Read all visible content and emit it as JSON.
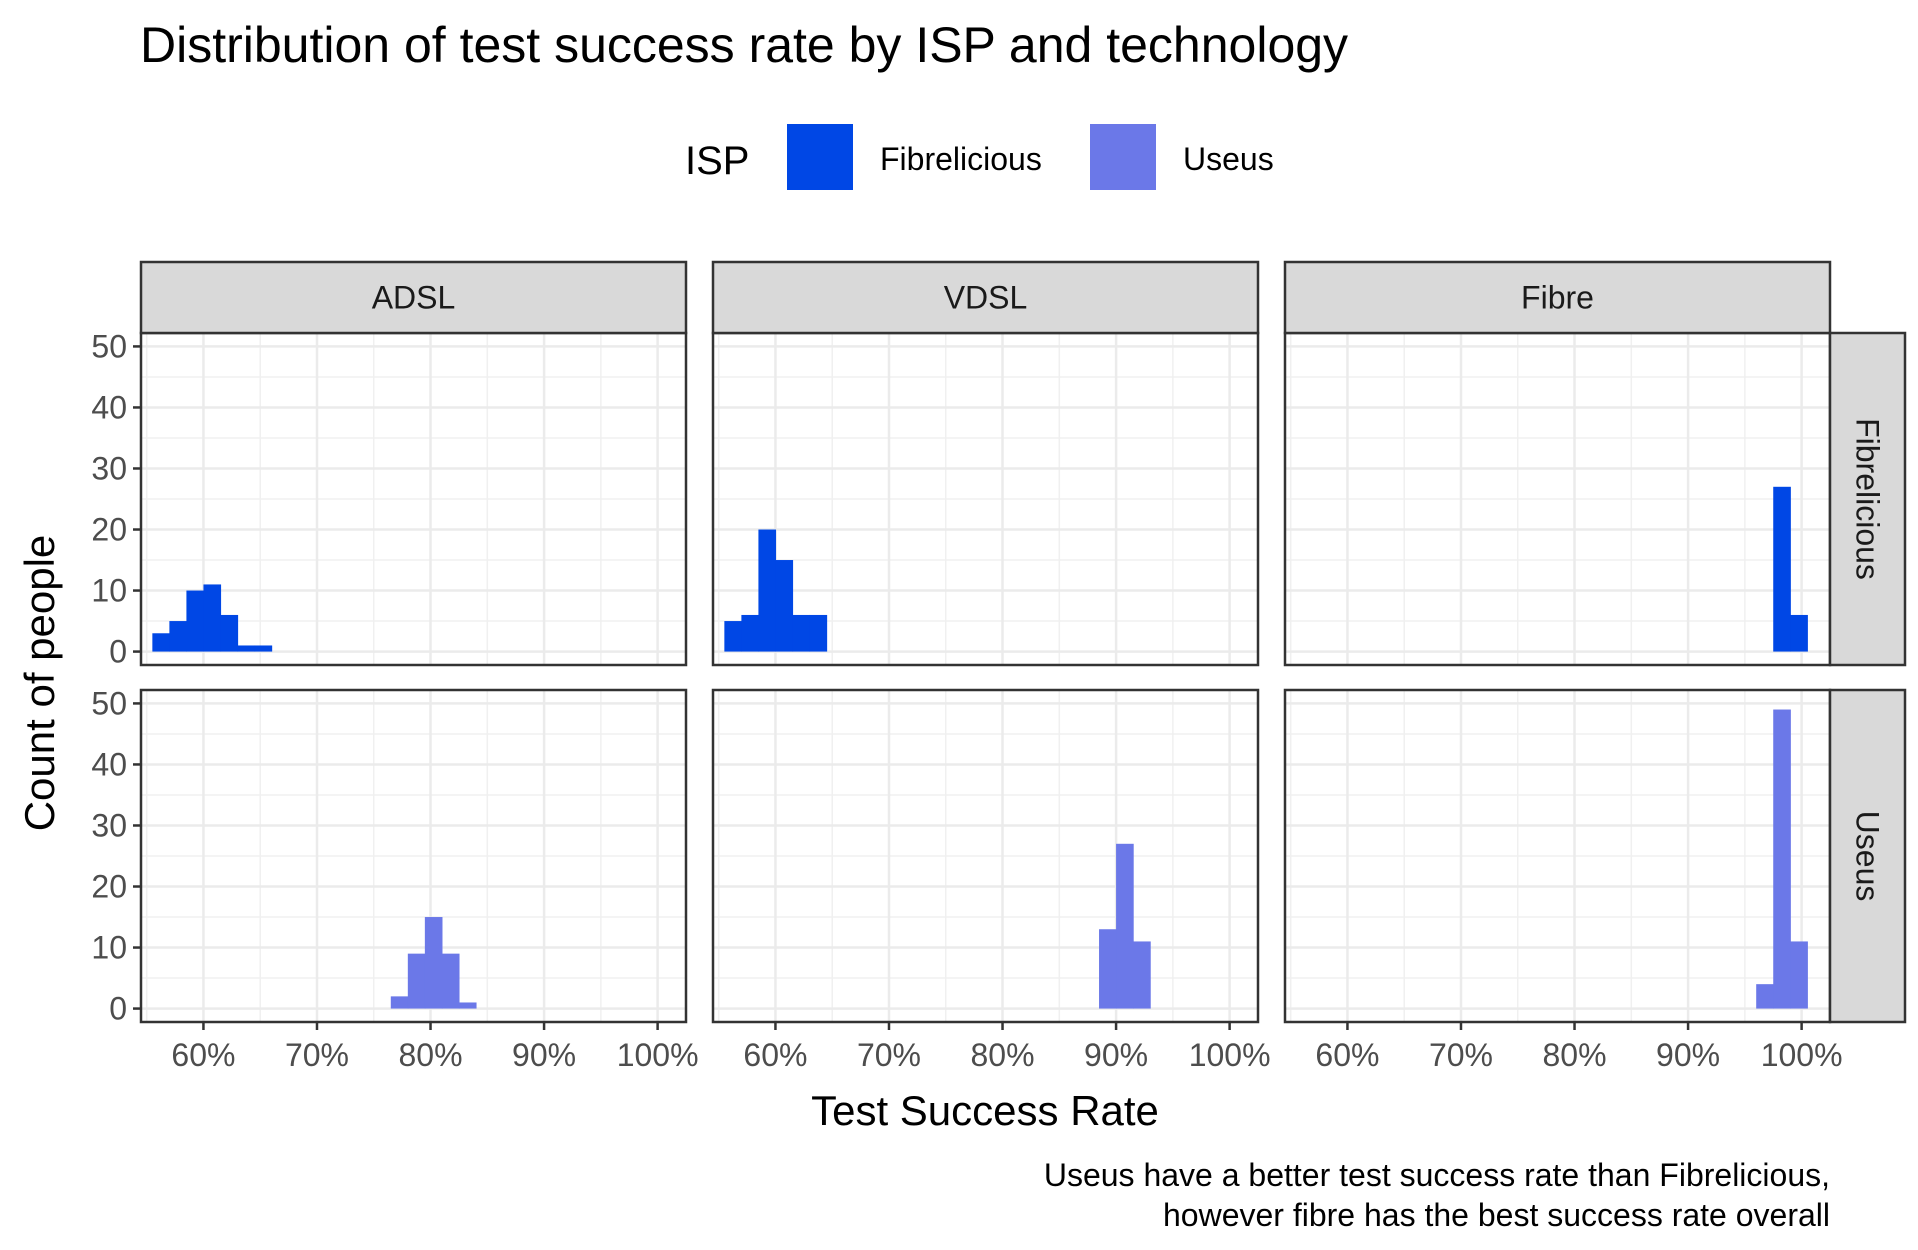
{
  "chart_data": {
    "type": "bar",
    "title": "Distribution of test success rate by ISP and technology",
    "xlabel": "Test Success Rate",
    "ylabel": "Count of people",
    "caption_lines": [
      "Useus have a better test success rate than Fibrelicious,",
      "however fibre has the best success rate overall"
    ],
    "legend": {
      "title": "ISP",
      "position": "top",
      "entries": [
        {
          "name": "Fibrelicious",
          "color": "#0047E5"
        },
        {
          "name": "Useus",
          "color": "#6B78E8"
        }
      ]
    },
    "columns": [
      "ADSL",
      "VDSL",
      "Fibre"
    ],
    "rows": [
      "Fibrelicious",
      "Useus"
    ],
    "xlim": [
      0.545,
      1.025
    ],
    "ylim": [
      -2.2,
      52.2
    ],
    "x_ticks": [
      0.6,
      0.7,
      0.8,
      0.9,
      1.0
    ],
    "x_tick_labels": [
      "60%",
      "70%",
      "80%",
      "90%",
      "100%"
    ],
    "y_ticks": [
      0,
      10,
      20,
      30,
      40,
      50
    ],
    "y_tick_labels": [
      "0",
      "10",
      "20",
      "30",
      "40",
      "50"
    ],
    "bin_width": 0.015,
    "grid": true,
    "panels": [
      {
        "column": "ADSL",
        "row": "Fibrelicious",
        "series": "Fibrelicious",
        "bins": [
          [
            0.5625,
            3
          ],
          [
            0.5775,
            5
          ],
          [
            0.5925,
            10
          ],
          [
            0.6075,
            11
          ],
          [
            0.6225,
            6
          ],
          [
            0.6375,
            1
          ],
          [
            0.6525,
            1
          ]
        ]
      },
      {
        "column": "VDSL",
        "row": "Fibrelicious",
        "series": "Fibrelicious",
        "bins": [
          [
            0.5625,
            5
          ],
          [
            0.5775,
            6
          ],
          [
            0.5925,
            20
          ],
          [
            0.6075,
            15
          ],
          [
            0.6225,
            6
          ],
          [
            0.6375,
            6
          ]
        ]
      },
      {
        "column": "Fibre",
        "row": "Fibrelicious",
        "series": "Fibrelicious",
        "bins": [
          [
            0.9825,
            27
          ],
          [
            0.9975,
            6
          ]
        ]
      },
      {
        "column": "ADSL",
        "row": "Useus",
        "series": "Useus",
        "bins": [
          [
            0.7725,
            2
          ],
          [
            0.7875,
            9
          ],
          [
            0.8025,
            15
          ],
          [
            0.8175,
            9
          ],
          [
            0.8325,
            1
          ]
        ]
      },
      {
        "column": "VDSL",
        "row": "Useus",
        "series": "Useus",
        "bins": [
          [
            0.8925,
            13
          ],
          [
            0.9075,
            27
          ],
          [
            0.9225,
            11
          ]
        ]
      },
      {
        "column": "Fibre",
        "row": "Useus",
        "series": "Useus",
        "bins": [
          [
            0.9675,
            4
          ],
          [
            0.9825,
            49
          ],
          [
            0.9975,
            11
          ]
        ]
      }
    ]
  }
}
